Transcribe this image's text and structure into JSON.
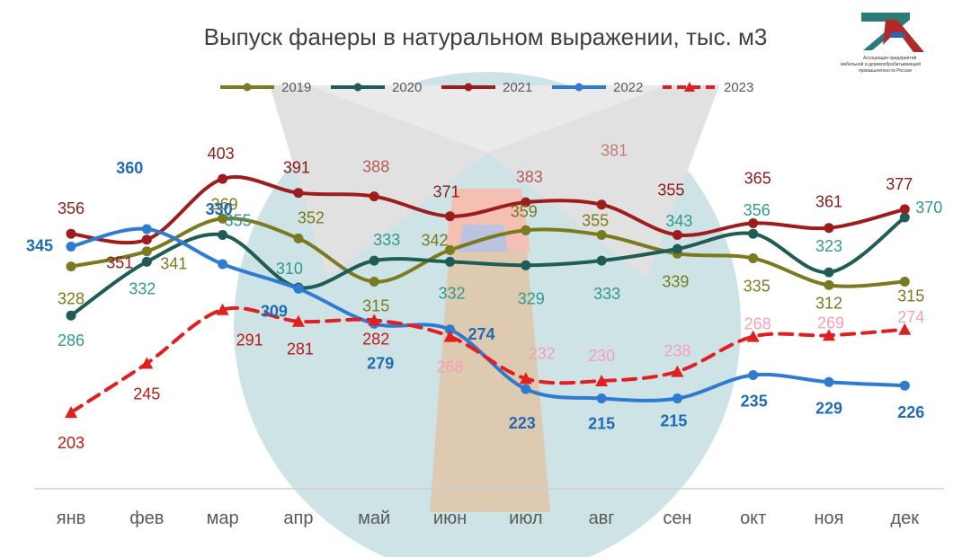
{
  "chart_data": {
    "type": "line",
    "title": "Выпуск фанеры в натуральном выражении, тыс. м3",
    "categories": [
      "янв",
      "фев",
      "мар",
      "апр",
      "май",
      "июн",
      "июл",
      "авг",
      "сен",
      "окт",
      "ноя",
      "дек"
    ],
    "ylim": [
      180,
      420
    ],
    "grid": false,
    "legend_position": "top",
    "series": [
      {
        "name": "2019",
        "color": "#7a7a1e",
        "values": [
          328,
          341,
          369,
          352,
          315,
          342,
          359,
          355,
          339,
          335,
          312,
          315
        ]
      },
      {
        "name": "2020",
        "color": "#1f5c55",
        "values": [
          286,
          332,
          355,
          310,
          333,
          332,
          329,
          333,
          343,
          356,
          323,
          370
        ]
      },
      {
        "name": "2021",
        "color": "#9e1c1c",
        "values": [
          356,
          351,
          403,
          391,
          388,
          371,
          383,
          381,
          355,
          365,
          361,
          377
        ]
      },
      {
        "name": "2022",
        "color": "#2f7bd1",
        "values": [
          345,
          360,
          330,
          309,
          279,
          274,
          223,
          215,
          215,
          235,
          229,
          226
        ]
      },
      {
        "name": "2023",
        "color": "#e02020",
        "values": [
          203,
          245,
          291,
          281,
          282,
          268,
          232,
          230,
          238,
          268,
          269,
          274
        ]
      }
    ]
  },
  "logo": {
    "caption_line1": "Ассоциация предприятий",
    "caption_line2": "мебельной и деревообрабатывающей",
    "caption_line3": "промышленности России"
  }
}
